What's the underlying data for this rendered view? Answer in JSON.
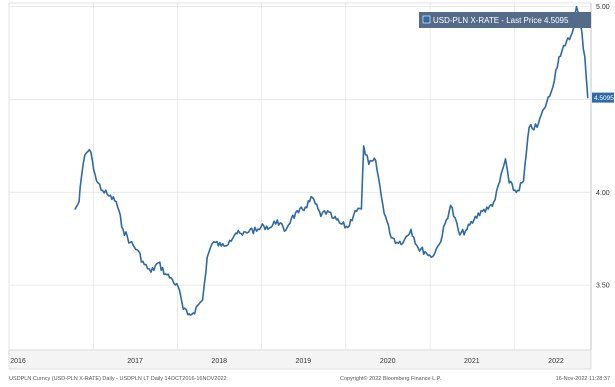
{
  "footer": {
    "left": "USDPLN Curncy (USD-PLN X-RATE) Daily - USDPLN LT  Daily 14OCT2016-16NOV2022",
    "center": "Copyright© 2022 Bloomberg Finance L.P.",
    "right": "16-Nov-2022 11:28:37"
  },
  "chart_data": {
    "type": "line",
    "legend": "USD-PLN X-RATE - Last Price 4.5095",
    "legend_position": "top-right",
    "last_price_label": "4.5095",
    "colors": {
      "series": "#2e6aa7",
      "legend_bg": "#556b8a",
      "grid": "#e2e2e2"
    },
    "grid": true,
    "y_axis_side": "right",
    "ylim": [
      3.15,
      5.02
    ],
    "y_ticks": [
      3.5,
      4.0,
      4.5,
      5.0
    ],
    "y_tick_labels": [
      "3.50",
      "4.00",
      "4.5095",
      "5.00"
    ],
    "x_tick_labels": [
      "2016",
      "2017",
      "2018",
      "2019",
      "2020",
      "2021",
      "2022"
    ],
    "series": [
      {
        "x": [
          "2016-10-14",
          "2016-10-31",
          "2016-11-10",
          "2016-11-25",
          "2016-12-15",
          "2016-12-28",
          "2017-01-15",
          "2017-02-10",
          "2017-03-10",
          "2017-04-10",
          "2017-05-10",
          "2017-06-10",
          "2017-07-10",
          "2017-08-10",
          "2017-09-08",
          "2017-10-10",
          "2017-11-10",
          "2017-12-10",
          "2018-01-10",
          "2018-01-26",
          "2018-02-15",
          "2018-03-10",
          "2018-04-05",
          "2018-04-20",
          "2018-05-10",
          "2018-05-30",
          "2018-06-15",
          "2018-07-10",
          "2018-08-15",
          "2018-09-10",
          "2018-10-10",
          "2018-11-12",
          "2018-12-10",
          "2019-01-10",
          "2019-02-10",
          "2019-03-10",
          "2019-04-10",
          "2019-05-10",
          "2019-06-10",
          "2019-07-10",
          "2019-08-10",
          "2019-09-15",
          "2019-10-01",
          "2019-11-10",
          "2019-12-10",
          "2020-01-10",
          "2020-02-10",
          "2020-03-09",
          "2020-03-19",
          "2020-04-10",
          "2020-05-10",
          "2020-06-10",
          "2020-07-10",
          "2020-08-10",
          "2020-09-10",
          "2020-10-10",
          "2020-11-10",
          "2020-12-10",
          "2021-01-06",
          "2021-02-10",
          "2021-03-31",
          "2021-05-10",
          "2021-06-10",
          "2021-07-10",
          "2021-08-10",
          "2021-09-10",
          "2021-10-10",
          "2021-11-24",
          "2021-12-10",
          "2022-01-10",
          "2022-02-10",
          "2022-03-07",
          "2022-04-10",
          "2022-05-10",
          "2022-06-10",
          "2022-07-14",
          "2022-08-10",
          "2022-09-10",
          "2022-09-28",
          "2022-10-15",
          "2022-11-03",
          "2022-11-16"
        ],
        "values": [
          3.91,
          3.95,
          4.08,
          4.2,
          4.23,
          4.17,
          4.06,
          4.01,
          3.98,
          3.95,
          3.8,
          3.73,
          3.69,
          3.61,
          3.57,
          3.62,
          3.56,
          3.53,
          3.47,
          3.37,
          3.34,
          3.35,
          3.4,
          3.42,
          3.65,
          3.72,
          3.73,
          3.71,
          3.74,
          3.78,
          3.77,
          3.8,
          3.79,
          3.82,
          3.81,
          3.85,
          3.79,
          3.86,
          3.89,
          3.92,
          3.97,
          3.87,
          3.9,
          3.86,
          3.83,
          3.81,
          3.9,
          3.91,
          4.25,
          4.15,
          4.17,
          3.93,
          3.78,
          3.73,
          3.74,
          3.8,
          3.7,
          3.68,
          3.65,
          3.72,
          3.93,
          3.77,
          3.8,
          3.85,
          3.9,
          3.91,
          3.96,
          4.18,
          4.05,
          4.0,
          4.06,
          4.35,
          4.35,
          4.45,
          4.54,
          4.73,
          4.79,
          4.86,
          5.0,
          4.91,
          4.73,
          4.51
        ]
      }
    ]
  }
}
